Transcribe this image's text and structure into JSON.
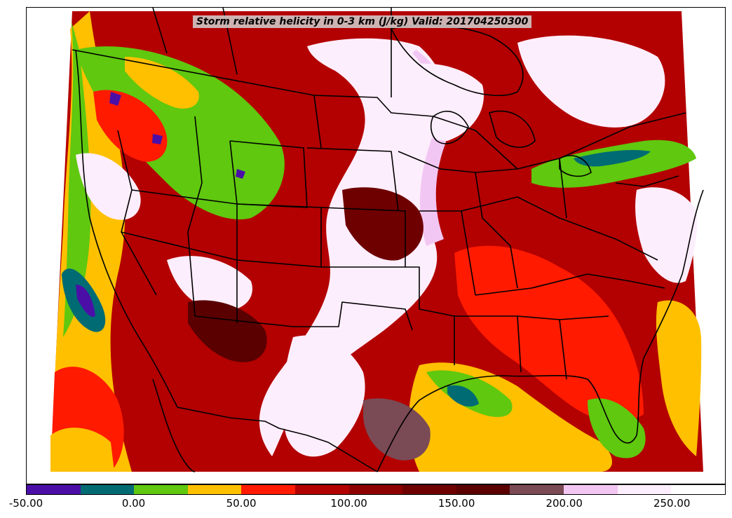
{
  "title": "Storm relative helicity in 0-3 km (J/kg) Valid: 201704250300",
  "colorbar": {
    "colors": [
      "#4b0fa8",
      "#006b73",
      "#5fc80f",
      "#ffc000",
      "#ff1a00",
      "#b30000",
      "#8c0000",
      "#6e0000",
      "#5a0000",
      "#7a4a55",
      "#f2c6f2",
      "#fdeefd"
    ],
    "tick_labels": [
      "-50.00",
      "0.00",
      "50.00",
      "100.00",
      "150.00",
      "200.00",
      "250.00"
    ],
    "tick_values": [
      -50,
      0,
      50,
      100,
      150,
      200,
      250
    ],
    "range": [
      -50,
      275
    ],
    "interval": 25
  }
}
